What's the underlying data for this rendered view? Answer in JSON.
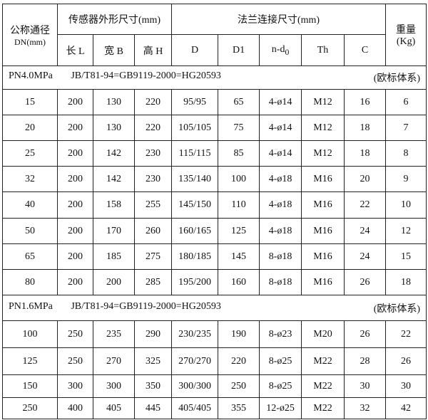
{
  "header": {
    "dn_label": "公称通径",
    "dn_unit": "DN(mm)",
    "sensor_group": "传感器外形尺寸(mm)",
    "flange_group": "法兰连接尺寸(mm)",
    "weight_label": "重量",
    "weight_unit": "(Kg)",
    "columns": [
      "长 L",
      "宽 B",
      "高 H",
      "D",
      "D1",
      "n-d",
      "Th",
      "C"
    ],
    "nd_subscript": "0"
  },
  "sections": [
    {
      "pressure": "PN4.0MPa",
      "standard": "JB/T81-94=GB9119-2000=HG20593",
      "system": "(欧标体系)",
      "rows": [
        [
          "15",
          "200",
          "130",
          "220",
          "95/95",
          "65",
          "4-ø14",
          "M12",
          "16",
          "6"
        ],
        [
          "20",
          "200",
          "130",
          "220",
          "105/105",
          "75",
          "4-ø14",
          "M12",
          "18",
          "7"
        ],
        [
          "25",
          "200",
          "142",
          "230",
          "115/115",
          "85",
          "4-ø14",
          "M12",
          "18",
          "8"
        ],
        [
          "32",
          "200",
          "142",
          "230",
          "135/140",
          "100",
          "4-ø18",
          "M16",
          "20",
          "9"
        ],
        [
          "40",
          "200",
          "158",
          "255",
          "145/150",
          "110",
          "4-ø18",
          "M16",
          "22",
          "10"
        ],
        [
          "50",
          "200",
          "170",
          "260",
          "160/165",
          "125",
          "4-ø18",
          "M16",
          "24",
          "12"
        ],
        [
          "65",
          "200",
          "185",
          "275",
          "180/185",
          "145",
          "8-ø18",
          "M16",
          "24",
          "15"
        ],
        [
          "80",
          "200",
          "200",
          "285",
          "195/200",
          "160",
          "8-ø18",
          "M16",
          "26",
          "18"
        ]
      ]
    },
    {
      "pressure": "PN1.6MPa",
      "standard": "JB/T81-94=GB9119-2000=HG20593",
      "system": "(欧标体系)",
      "rows": [
        [
          "100",
          "250",
          "235",
          "290",
          "230/235",
          "190",
          "8-ø23",
          "M20",
          "26",
          "22"
        ],
        [
          "125",
          "250",
          "270",
          "325",
          "270/270",
          "220",
          "8-ø25",
          "M22",
          "28",
          "26"
        ],
        [
          "150",
          "300",
          "300",
          "350",
          "300/300",
          "250",
          "8-ø25",
          "M22",
          "30",
          "30"
        ],
        [
          "250",
          "400",
          "405",
          "445",
          "405/405",
          "355",
          "12-ø25",
          "M22",
          "32",
          "42"
        ]
      ]
    }
  ]
}
